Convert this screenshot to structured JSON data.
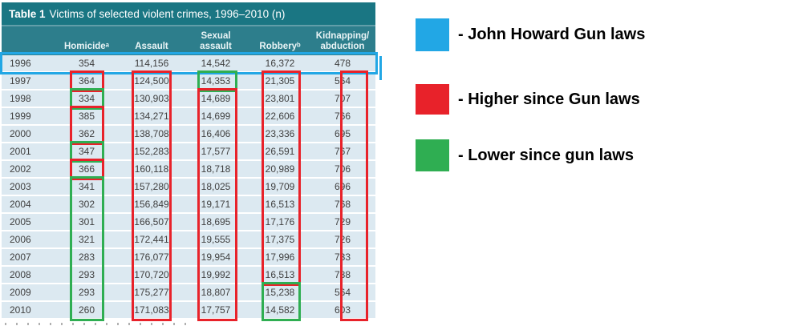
{
  "colors": {
    "title_bar": "#1a7683",
    "header_band": "#2d7e8c",
    "row_bg": "#dce9f1",
    "blue": "#22a7e5",
    "red": "#e8222a",
    "green": "#2fae52",
    "cell_text": "#404040"
  },
  "table": {
    "title_prefix": "Table 1",
    "title_text": "Victims of selected violent crimes, 1996–2010 (n)",
    "columns": [
      "",
      "Homicideᵃ",
      "Assault",
      "Sexual\nassault",
      "Robberyᵇ",
      "Kidnapping/\nabduction"
    ],
    "rows": [
      {
        "year": "1996",
        "values": [
          "354",
          "114,156",
          "14,542",
          "16,372",
          "478"
        ]
      },
      {
        "year": "1997",
        "values": [
          "364",
          "124,500",
          "14,353",
          "21,305",
          "564"
        ]
      },
      {
        "year": "1998",
        "values": [
          "334",
          "130,903",
          "14,689",
          "23,801",
          "707"
        ]
      },
      {
        "year": "1999",
        "values": [
          "385",
          "134,271",
          "14,699",
          "22,606",
          "766"
        ]
      },
      {
        "year": "2000",
        "values": [
          "362",
          "138,708",
          "16,406",
          "23,336",
          "695"
        ]
      },
      {
        "year": "2001",
        "values": [
          "347",
          "152,283",
          "17,577",
          "26,591",
          "767"
        ]
      },
      {
        "year": "2002",
        "values": [
          "366",
          "160,118",
          "18,718",
          "20,989",
          "706"
        ]
      },
      {
        "year": "2003",
        "values": [
          "341",
          "157,280",
          "18,025",
          "19,709",
          "696"
        ]
      },
      {
        "year": "2004",
        "values": [
          "302",
          "156,849",
          "19,171",
          "16,513",
          "768"
        ]
      },
      {
        "year": "2005",
        "values": [
          "301",
          "166,507",
          "18,695",
          "17,176",
          "729"
        ]
      },
      {
        "year": "2006",
        "values": [
          "321",
          "172,441",
          "19,555",
          "17,375",
          "726"
        ]
      },
      {
        "year": "2007",
        "values": [
          "283",
          "176,077",
          "19,954",
          "17,996",
          "733"
        ]
      },
      {
        "year": "2008",
        "values": [
          "293",
          "170,720",
          "19,992",
          "16,513",
          "788"
        ]
      },
      {
        "year": "2009",
        "values": [
          "293",
          "175,277",
          "18,807",
          "15,238",
          "564"
        ]
      },
      {
        "year": "2010",
        "values": [
          "260",
          "171,083",
          "17,757",
          "14,582",
          "603"
        ]
      }
    ]
  },
  "annotations": {
    "highlight_row": {
      "year": "1996",
      "color": "blue"
    },
    "boxes": [
      {
        "column": "Homicide",
        "from": "1997",
        "to": "1997",
        "color": "red"
      },
      {
        "column": "Homicide",
        "from": "1998",
        "to": "1998",
        "color": "green"
      },
      {
        "column": "Homicide",
        "from": "1999",
        "to": "2000",
        "color": "red"
      },
      {
        "column": "Homicide",
        "from": "2001",
        "to": "2001",
        "color": "green"
      },
      {
        "column": "Homicide",
        "from": "2002",
        "to": "2002",
        "color": "red"
      },
      {
        "column": "Homicide",
        "from": "2003",
        "to": "2010",
        "color": "green"
      },
      {
        "column": "Assault",
        "from": "1997",
        "to": "2010",
        "color": "red"
      },
      {
        "column": "Sexual assault",
        "from": "1997",
        "to": "1997",
        "color": "green"
      },
      {
        "column": "Sexual assault",
        "from": "1998",
        "to": "2010",
        "color": "red"
      },
      {
        "column": "Robbery",
        "from": "1997",
        "to": "2008",
        "color": "red"
      },
      {
        "column": "Robbery",
        "from": "2009",
        "to": "2010",
        "color": "green"
      },
      {
        "column": "Kidnapping/abduction",
        "from": "1997",
        "to": "2010",
        "color": "red"
      }
    ]
  },
  "legend": {
    "items": [
      {
        "swatch": "blue",
        "label": "- John Howard Gun laws"
      },
      {
        "swatch": "red",
        "label": "- Higher since Gun laws"
      },
      {
        "swatch": "green",
        "label": "- Lower since gun laws"
      }
    ]
  },
  "chart_data": {
    "type": "table",
    "title": "Table 1 Victims of selected violent crimes, 1996–2010 (n)",
    "categories": [
      "1996",
      "1997",
      "1998",
      "1999",
      "2000",
      "2001",
      "2002",
      "2003",
      "2004",
      "2005",
      "2006",
      "2007",
      "2008",
      "2009",
      "2010"
    ],
    "series": [
      {
        "name": "Homicide",
        "values": [
          354,
          364,
          334,
          385,
          362,
          347,
          366,
          341,
          302,
          301,
          321,
          283,
          293,
          293,
          260
        ]
      },
      {
        "name": "Assault",
        "values": [
          114156,
          124500,
          130903,
          134271,
          138708,
          152283,
          160118,
          157280,
          156849,
          166507,
          172441,
          176077,
          170720,
          175277,
          171083
        ]
      },
      {
        "name": "Sexual assault",
        "values": [
          14542,
          14353,
          14689,
          14699,
          16406,
          17577,
          18718,
          18025,
          19171,
          18695,
          19555,
          19954,
          19992,
          18807,
          17757
        ]
      },
      {
        "name": "Robbery",
        "values": [
          16372,
          21305,
          23801,
          22606,
          23336,
          26591,
          20989,
          19709,
          16513,
          17176,
          17375,
          17996,
          16513,
          15238,
          14582
        ]
      },
      {
        "name": "Kidnapping/abduction",
        "values": [
          478,
          564,
          707,
          766,
          695,
          767,
          706,
          696,
          768,
          729,
          726,
          733,
          788,
          564,
          603
        ]
      }
    ],
    "annotations_legend": [
      {
        "color": "blue",
        "meaning": "John Howard Gun laws (1996 row)"
      },
      {
        "color": "red",
        "meaning": "Higher since Gun laws"
      },
      {
        "color": "green",
        "meaning": "Lower since gun laws"
      }
    ]
  }
}
